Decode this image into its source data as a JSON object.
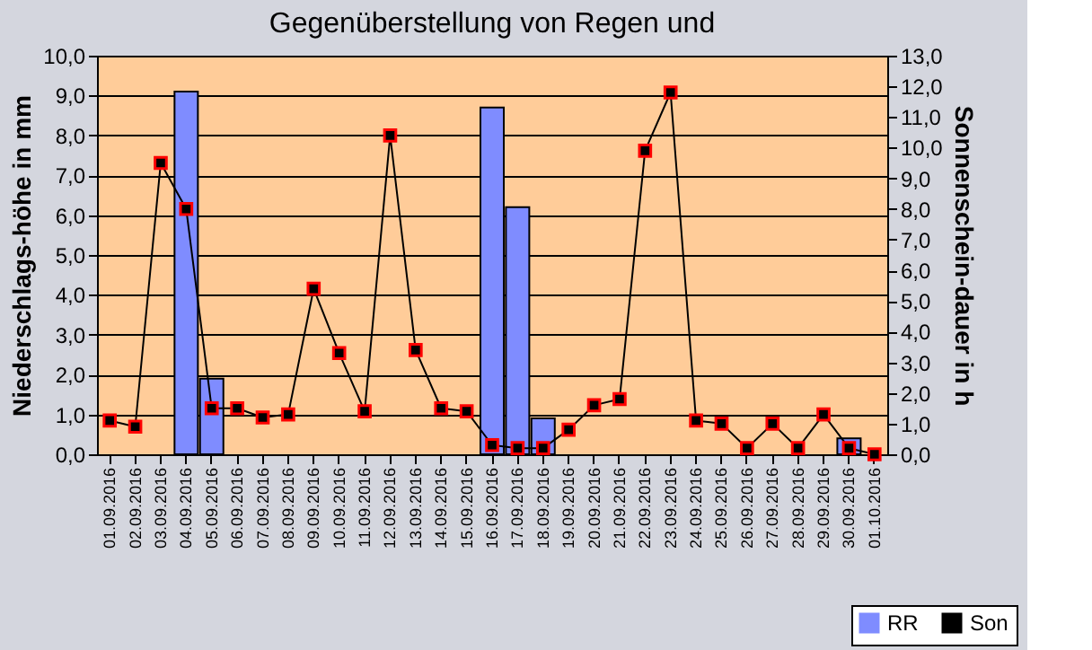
{
  "chart_data": {
    "type": "bar",
    "title": "Gegenüberstellung von Regen und",
    "xlabel": null,
    "ylabel": "Niederschlags-höhe in mm",
    "y2label": "Sonnenschein-dauer in h",
    "categories": [
      "01.09.2016",
      "02.09.2016",
      "03.09.2016",
      "04.09.2016",
      "05.09.2016",
      "06.09.2016",
      "07.09.2016",
      "08.09.2016",
      "09.09.2016",
      "10.09.2016",
      "11.09.2016",
      "12.09.2016",
      "13.09.2016",
      "14.09.2016",
      "15.09.2016",
      "16.09.2016",
      "17.09.2016",
      "18.09.2016",
      "19.09.2016",
      "20.09.2016",
      "21.09.2016",
      "22.09.2016",
      "23.09.2016",
      "24.09.2016",
      "25.09.2016",
      "26.09.2016",
      "27.09.2016",
      "28.09.2016",
      "29.09.2016",
      "30.09.2016",
      "01.10.2016"
    ],
    "series": [
      {
        "name": "RR",
        "color": "#7f8cff",
        "values": [
          null,
          null,
          null,
          9.1,
          1.9,
          null,
          null,
          null,
          null,
          null,
          null,
          null,
          null,
          null,
          null,
          8.7,
          6.2,
          0.9,
          null,
          null,
          null,
          null,
          null,
          null,
          null,
          null,
          null,
          null,
          null,
          0.4,
          null
        ]
      },
      {
        "name": "Son",
        "type": "line",
        "axis": "y2",
        "color": "#000000",
        "marker": "square",
        "values": [
          1.1,
          0.9,
          9.5,
          8.0,
          1.5,
          1.5,
          1.2,
          1.3,
          5.4,
          3.3,
          1.4,
          10.4,
          3.4,
          1.5,
          1.4,
          0.3,
          0.2,
          0.2,
          0.8,
          1.6,
          1.8,
          9.9,
          11.8,
          1.1,
          1.0,
          0.2,
          1.0,
          0.2,
          1.3,
          0.2,
          0.0
        ]
      }
    ],
    "ylim": [
      0,
      10
    ],
    "yticks": [
      {
        "value": 0,
        "label": "0,0"
      },
      {
        "value": 1,
        "label": "1,0"
      },
      {
        "value": 2,
        "label": "2,0"
      },
      {
        "value": 3,
        "label": "3,0"
      },
      {
        "value": 4,
        "label": "4,0"
      },
      {
        "value": 5,
        "label": "5,0"
      },
      {
        "value": 6,
        "label": "6,0"
      },
      {
        "value": 7,
        "label": "7,0"
      },
      {
        "value": 8,
        "label": "8,0"
      },
      {
        "value": 9,
        "label": "9,0"
      },
      {
        "value": 10,
        "label": "10,0"
      }
    ],
    "y2lim": [
      0,
      13
    ],
    "y2ticks": [
      {
        "value": 0,
        "label": "0,0"
      },
      {
        "value": 1,
        "label": "1,0"
      },
      {
        "value": 2,
        "label": "2,0"
      },
      {
        "value": 3,
        "label": "3,0"
      },
      {
        "value": 4,
        "label": "4,0"
      },
      {
        "value": 5,
        "label": "5,0"
      },
      {
        "value": 6,
        "label": "6,0"
      },
      {
        "value": 7,
        "label": "7,0"
      },
      {
        "value": 8,
        "label": "8,0"
      },
      {
        "value": 9,
        "label": "9,0"
      },
      {
        "value": 10,
        "label": "10,0"
      },
      {
        "value": 11,
        "label": "11,0"
      },
      {
        "value": 12,
        "label": "12,0"
      },
      {
        "value": 13,
        "label": "13,0"
      }
    ],
    "grid": "y",
    "legend": "bottom right",
    "line_style": "solid"
  }
}
